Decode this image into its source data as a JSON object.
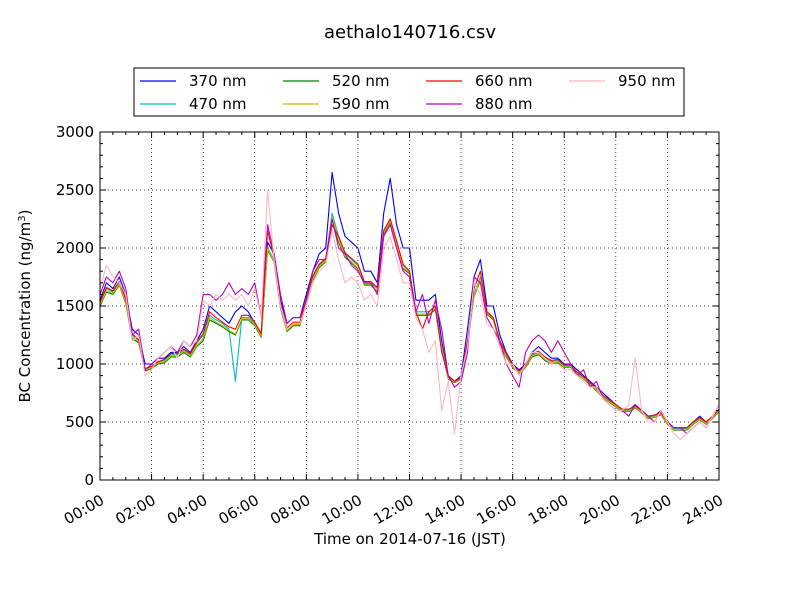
{
  "chart_data": {
    "type": "line",
    "title": "aethalo140716.csv",
    "xlabel": "Time on 2014-07-16 (JST)",
    "ylabel_main": "BC Concentration (ng/m",
    "ylabel_sup": "3",
    "ylabel_close": ")",
    "xlim_hours": [
      0,
      24
    ],
    "ylim": [
      0,
      3000
    ],
    "x_ticks": [
      0,
      2,
      4,
      6,
      8,
      10,
      12,
      14,
      16,
      18,
      20,
      22,
      24
    ],
    "x_tick_labels": [
      "00:00",
      "02:00",
      "04:00",
      "06:00",
      "08:00",
      "10:00",
      "12:00",
      "14:00",
      "16:00",
      "18:00",
      "20:00",
      "22:00",
      "24:00"
    ],
    "y_ticks": [
      0,
      500,
      1000,
      1500,
      2000,
      2500,
      3000
    ],
    "y_tick_labels": [
      "0",
      "500",
      "1000",
      "1500",
      "2000",
      "2500",
      "3000"
    ],
    "grid": true,
    "legend_position": "top, above plot",
    "time_hours": [
      0.0,
      0.25,
      0.5,
      0.75,
      1.0,
      1.25,
      1.5,
      1.75,
      2.0,
      2.25,
      2.5,
      2.75,
      3.0,
      3.25,
      3.5,
      3.75,
      4.0,
      4.25,
      4.5,
      4.75,
      5.0,
      5.25,
      5.5,
      5.75,
      6.0,
      6.25,
      6.5,
      6.75,
      7.0,
      7.25,
      7.5,
      7.75,
      8.0,
      8.25,
      8.5,
      8.75,
      9.0,
      9.25,
      9.5,
      9.75,
      10.0,
      10.25,
      10.5,
      10.75,
      11.0,
      11.25,
      11.5,
      11.75,
      12.0,
      12.25,
      12.5,
      12.75,
      13.0,
      13.25,
      13.5,
      13.75,
      14.0,
      14.25,
      14.5,
      14.75,
      15.0,
      15.25,
      15.5,
      15.75,
      16.0,
      16.25,
      16.5,
      16.75,
      17.0,
      17.25,
      17.5,
      17.75,
      18.0,
      18.25,
      18.5,
      18.75,
      19.0,
      19.25,
      19.5,
      19.75,
      20.0,
      20.25,
      20.5,
      20.75,
      21.0,
      21.25,
      21.5,
      21.75,
      22.0,
      22.25,
      22.5,
      22.75,
      23.0,
      23.25,
      23.5,
      23.75,
      24.0
    ],
    "series": [
      {
        "name": "370 nm",
        "color": "#0000ff",
        "values": [
          1550,
          1700,
          1650,
          1750,
          1600,
          1300,
          1250,
          1000,
          1000,
          1050,
          1050,
          1100,
          1100,
          1150,
          1100,
          1200,
          1300,
          1500,
          1450,
          1400,
          1350,
          1450,
          1500,
          1450,
          1350,
          1250,
          2050,
          1950,
          1550,
          1350,
          1400,
          1400,
          1600,
          1800,
          1950,
          2000,
          2650,
          2300,
          2100,
          2050,
          2000,
          1800,
          1800,
          1700,
          2300,
          2600,
          2200,
          2000,
          2000,
          1550,
          1550,
          1550,
          1600,
          1200,
          900,
          850,
          900,
          1300,
          1750,
          1900,
          1500,
          1500,
          1250,
          1100,
          1000,
          950,
          1000,
          1100,
          1150,
          1100,
          1050,
          1050,
          1000,
          1000,
          950,
          900,
          850,
          800,
          750,
          700,
          650,
          600,
          600,
          650,
          600,
          550,
          550,
          600,
          500,
          450,
          450,
          450,
          500,
          550,
          500,
          550,
          600
        ]
      },
      {
        "name": "470 nm",
        "color": "#00bfbf",
        "values": [
          1520,
          1650,
          1620,
          1700,
          1550,
          1250,
          1200,
          950,
          970,
          1020,
          1030,
          1080,
          1080,
          1120,
          1080,
          1180,
          1250,
          1420,
          1380,
          1350,
          1300,
          850,
          1400,
          1400,
          1350,
          1250,
          2000,
          1900,
          1500,
          1300,
          1350,
          1350,
          1550,
          1750,
          1850,
          1900,
          2300,
          2100,
          1950,
          1900,
          1850,
          1700,
          1700,
          1650,
          2150,
          2250,
          2050,
          1850,
          1800,
          1450,
          1450,
          1450,
          1500,
          1150,
          880,
          850,
          880,
          1200,
          1600,
          1750,
          1450,
          1400,
          1200,
          1080,
          980,
          930,
          980,
          1080,
          1100,
          1050,
          1020,
          1030,
          980,
          980,
          920,
          880,
          830,
          780,
          720,
          680,
          640,
          600,
          600,
          630,
          590,
          540,
          550,
          570,
          490,
          440,
          440,
          440,
          490,
          530,
          490,
          540,
          600
        ]
      },
      {
        "name": "520 nm",
        "color": "#008000",
        "values": [
          1500,
          1620,
          1600,
          1680,
          1520,
          1220,
          1180,
          940,
          960,
          1000,
          1010,
          1060,
          1060,
          1100,
          1060,
          1150,
          1200,
          1380,
          1350,
          1320,
          1280,
          1250,
          1380,
          1380,
          1330,
          1230,
          1980,
          1880,
          1480,
          1280,
          1330,
          1330,
          1520,
          1720,
          1830,
          1880,
          2250,
          2050,
          1920,
          1870,
          1820,
          1680,
          1680,
          1620,
          2120,
          2220,
          2020,
          1820,
          1780,
          1420,
          1420,
          1420,
          1470,
          1130,
          870,
          840,
          870,
          1180,
          1580,
          1720,
          1430,
          1380,
          1180,
          1060,
          970,
          920,
          970,
          1060,
          1080,
          1030,
          1000,
          1010,
          970,
          970,
          910,
          870,
          820,
          770,
          710,
          670,
          630,
          590,
          590,
          620,
          580,
          530,
          540,
          560,
          480,
          430,
          430,
          430,
          480,
          520,
          480,
          530,
          590
        ]
      },
      {
        "name": "590 nm",
        "color": "#bfbf00",
        "values": [
          1510,
          1630,
          1610,
          1690,
          1530,
          1230,
          1190,
          950,
          970,
          1010,
          1020,
          1070,
          1070,
          1110,
          1070,
          1160,
          1220,
          1400,
          1360,
          1330,
          1290,
          1260,
          1390,
          1390,
          1340,
          1240,
          1990,
          1890,
          1490,
          1290,
          1340,
          1340,
          1530,
          1730,
          1840,
          1890,
          2270,
          2070,
          1930,
          1880,
          1830,
          1690,
          1690,
          1630,
          2130,
          2230,
          2030,
          1830,
          1790,
          1430,
          1430,
          1430,
          1480,
          1140,
          875,
          845,
          875,
          1190,
          1590,
          1730,
          1440,
          1390,
          1190,
          1070,
          975,
          925,
          975,
          1070,
          1090,
          1040,
          1010,
          1020,
          975,
          975,
          915,
          875,
          825,
          775,
          715,
          675,
          635,
          595,
          595,
          625,
          585,
          535,
          545,
          565,
          485,
          435,
          435,
          435,
          485,
          525,
          485,
          535,
          595
        ]
      },
      {
        "name": "660 nm",
        "color": "#ff0000",
        "values": [
          1530,
          1660,
          1630,
          1710,
          1560,
          1260,
          1210,
          960,
          980,
          1020,
          1040,
          1090,
          1090,
          1130,
          1090,
          1190,
          1260,
          1450,
          1400,
          1360,
          1320,
          1300,
          1420,
          1420,
          1360,
          1260,
          2150,
          1920,
          1510,
          1310,
          1360,
          1360,
          1560,
          1760,
          1860,
          1910,
          2200,
          2100,
          1960,
          1910,
          1860,
          1710,
          1710,
          1660,
          2150,
          2250,
          2060,
          1860,
          1800,
          1450,
          1300,
          1450,
          1500,
          1100,
          900,
          850,
          880,
          1200,
          1650,
          1800,
          1450,
          1400,
          1200,
          1090,
          990,
          940,
          990,
          1090,
          1110,
          1060,
          1030,
          1040,
          990,
          990,
          930,
          890,
          840,
          790,
          730,
          690,
          650,
          610,
          610,
          640,
          600,
          550,
          560,
          580,
          500,
          450,
          450,
          450,
          500,
          540,
          500,
          550,
          610
        ]
      },
      {
        "name": "880 nm",
        "color": "#bf00bf",
        "values": [
          1600,
          1750,
          1700,
          1800,
          1650,
          1250,
          1300,
          950,
          1000,
          1050,
          1100,
          1150,
          1100,
          1200,
          1150,
          1250,
          1600,
          1600,
          1550,
          1600,
          1700,
          1600,
          1650,
          1600,
          1700,
          1400,
          2200,
          1950,
          1600,
          1350,
          1400,
          1400,
          1550,
          1800,
          1900,
          1900,
          2250,
          2000,
          1950,
          1850,
          1800,
          1700,
          1700,
          1600,
          2100,
          2200,
          2000,
          1800,
          1750,
          1450,
          1600,
          1350,
          1550,
          1300,
          900,
          800,
          850,
          1100,
          1750,
          1700,
          1400,
          1300,
          1200,
          1000,
          900,
          800,
          1100,
          1200,
          1250,
          1200,
          1100,
          1200,
          1100,
          1000,
          900,
          950,
          800,
          850,
          700,
          650,
          600,
          600,
          550,
          650,
          600,
          550,
          500,
          600,
          500,
          450,
          450,
          400,
          450,
          500,
          450,
          550,
          650
        ]
      },
      {
        "name": "950 nm",
        "color": "#ffb6c1",
        "values": [
          1650,
          1850,
          1750,
          1700,
          1600,
          1200,
          1250,
          900,
          950,
          1050,
          1100,
          1150,
          1050,
          1200,
          1150,
          1200,
          1550,
          1500,
          1600,
          1550,
          1600,
          1550,
          1600,
          1500,
          1650,
          1400,
          2500,
          1900,
          1500,
          1300,
          1350,
          1350,
          1500,
          1700,
          1800,
          1850,
          2150,
          1900,
          1700,
          1750,
          1700,
          1550,
          1600,
          1500,
          2000,
          2100,
          1900,
          1700,
          1700,
          1400,
          1300,
          1100,
          1200,
          600,
          850,
          400,
          900,
          1150,
          1700,
          1600,
          1350,
          1300,
          1150,
          1000,
          1000,
          900,
          1000,
          1100,
          1100,
          1050,
          1000,
          1000,
          950,
          950,
          900,
          850,
          800,
          800,
          700,
          650,
          600,
          600,
          650,
          1050,
          600,
          500,
          500,
          600,
          500,
          400,
          350,
          400,
          450,
          500,
          450,
          550,
          650
        ]
      }
    ]
  }
}
